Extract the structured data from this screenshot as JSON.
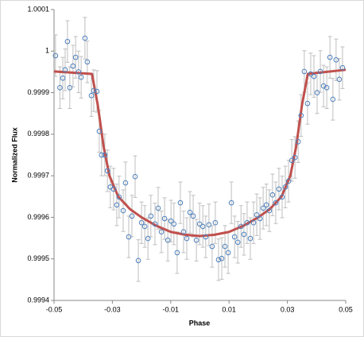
{
  "chart_data": {
    "type": "scatter",
    "xlabel": "Phase",
    "ylabel": "Normalized Flux",
    "xlim": [
      -0.05,
      0.05
    ],
    "xticks": [
      -0.05,
      -0.03,
      -0.01,
      0.01,
      0.03,
      0.05
    ],
    "ylim": [
      0.9994,
      1.0001
    ],
    "yticks": [
      0.9994,
      0.9995,
      0.9996,
      0.9997,
      0.9998,
      0.9999,
      1,
      1.0001
    ],
    "grid": false,
    "points": {
      "color": "#4f81bd",
      "error_color": "#bfbfbf",
      "x": [
        -0.0495,
        -0.048,
        -0.047,
        -0.0462,
        -0.0454,
        -0.0446,
        -0.0435,
        -0.0426,
        -0.0416,
        -0.0407,
        -0.0394,
        -0.0386,
        -0.0372,
        -0.0364,
        -0.0353,
        -0.0345,
        -0.0337,
        -0.0326,
        -0.0317,
        -0.0307,
        -0.0296,
        -0.0285,
        -0.0277,
        -0.0263,
        -0.0255,
        -0.0244,
        -0.0233,
        -0.0222,
        -0.0211,
        -0.02,
        -0.0189,
        -0.0178,
        -0.0168,
        -0.0154,
        -0.0143,
        -0.0132,
        -0.0121,
        -0.011,
        -0.0099,
        -0.0089,
        -0.0078,
        -0.0067,
        -0.0056,
        -0.0045,
        -0.0034,
        -0.0023,
        -0.0012,
        -0.0001,
        0.001,
        0.002,
        0.0031,
        0.0042,
        0.0053,
        0.0064,
        0.0075,
        0.0086,
        0.0097,
        0.0108,
        0.0119,
        0.013,
        0.0141,
        0.0151,
        0.0162,
        0.0173,
        0.0184,
        0.0195,
        0.0206,
        0.0217,
        0.0228,
        0.0238,
        0.0249,
        0.026,
        0.0271,
        0.0282,
        0.0293,
        0.0304,
        0.0315,
        0.0326,
        0.0337,
        0.0347,
        0.0358,
        0.0369,
        0.038,
        0.0391,
        0.0402,
        0.0413,
        0.0424,
        0.0435,
        0.0446,
        0.0456,
        0.0467,
        0.0478,
        0.0489
      ],
      "values": [
        0.999989,
        0.999912,
        0.999935,
        0.999955,
        1.000023,
        0.999912,
        0.999964,
        0.999985,
        0.99995,
        0.999937,
        1.000031,
        0.999974,
        0.999893,
        0.999905,
        0.999903,
        0.999807,
        0.99975,
        0.99975,
        0.999712,
        0.999673,
        0.999668,
        0.99963,
        0.999649,
        0.999616,
        0.999683,
        0.999553,
        0.999603,
        0.999698,
        0.999496,
        0.999587,
        0.999578,
        0.999549,
        0.999603,
        0.999584,
        0.999622,
        0.999565,
        0.999597,
        0.999545,
        0.999591,
        0.999584,
        0.999515,
        0.999635,
        0.999565,
        0.999549,
        0.999612,
        0.999603,
        0.999545,
        0.999584,
        0.999578,
        0.999553,
        0.999582,
        0.99953,
        0.999587,
        0.999498,
        0.999501,
        0.99953,
        0.999515,
        0.999635,
        0.999553,
        0.99954,
        0.999578,
        0.999559,
        0.999587,
        0.999549,
        0.999587,
        0.999606,
        0.999597,
        0.999622,
        0.99963,
        0.999616,
        0.999654,
        0.999635,
        0.999668,
        0.999649,
        0.999673,
        0.999687,
        0.999737,
        0.999744,
        0.999782,
        0.999845,
        0.999951,
        0.999874,
        0.999945,
        0.999939,
        0.9999,
        0.999951,
        0.999916,
        0.999912,
        0.999985,
        0.999884,
        0.999979,
        0.999932,
        0.99996
      ],
      "errors": [
        5e-05,
        5e-05,
        5e-05,
        5e-05,
        5e-05,
        5e-05,
        5e-05,
        5e-05,
        5e-05,
        5e-05,
        5e-05,
        5e-05,
        5e-05,
        5e-05,
        5e-05,
        5e-05,
        5e-05,
        5e-05,
        5e-05,
        5e-05,
        5e-05,
        5e-05,
        5e-05,
        5e-05,
        5e-05,
        5e-05,
        5e-05,
        5e-05,
        5e-05,
        5e-05,
        5e-05,
        5e-05,
        5e-05,
        5e-05,
        5e-05,
        5e-05,
        5e-05,
        5e-05,
        5e-05,
        5e-05,
        5e-05,
        5e-05,
        5e-05,
        5e-05,
        5e-05,
        5e-05,
        5e-05,
        5e-05,
        5e-05,
        5e-05,
        5e-05,
        5e-05,
        5e-05,
        5e-05,
        5e-05,
        5e-05,
        5e-05,
        5e-05,
        5e-05,
        5e-05,
        5e-05,
        5e-05,
        5e-05,
        5e-05,
        5e-05,
        5e-05,
        5e-05,
        5e-05,
        5e-05,
        5e-05,
        5e-05,
        5e-05,
        5e-05,
        5e-05,
        5e-05,
        5e-05,
        5e-05,
        5e-05,
        5e-05,
        5e-05,
        5e-05,
        5e-05,
        5e-05,
        5e-05,
        5e-05,
        5e-05,
        5e-05,
        5e-05,
        5e-05,
        5e-05,
        5e-05,
        5e-05,
        5e-05
      ]
    },
    "model": {
      "color": "#c0504d",
      "x": [
        -0.05,
        -0.037,
        -0.035,
        -0.033,
        -0.031,
        -0.028,
        -0.024,
        -0.02,
        -0.015,
        -0.01,
        -0.005,
        0,
        0.005,
        0.01,
        0.015,
        0.02,
        0.024,
        0.028,
        0.031,
        0.033,
        0.035,
        0.037,
        0.05
      ],
      "values": [
        0.999951,
        0.999945,
        0.99987,
        0.99977,
        0.9997,
        0.99965,
        0.99962,
        0.9996,
        0.99958,
        0.999565,
        0.999558,
        0.999555,
        0.999558,
        0.999565,
        0.99958,
        0.9996,
        0.99962,
        0.99965,
        0.9997,
        0.99977,
        0.99987,
        0.999945,
        0.999955
      ]
    }
  }
}
